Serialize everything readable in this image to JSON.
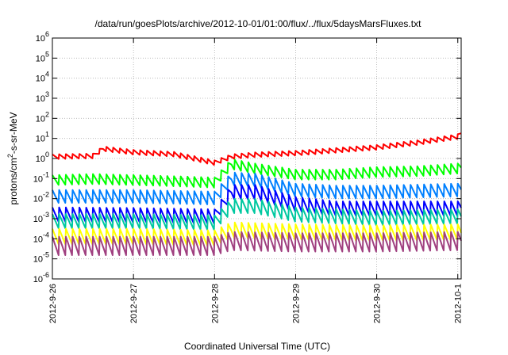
{
  "chart_data": {
    "type": "line",
    "title": "/data/run/goesPlots/archive/2012-10-01/01:00/flux/../flux/5daysMarsFluxes.txt",
    "xlabel": "Coordinated Universal Time (UTC)",
    "ylabel": "protons/cm2-s-sr-MeV",
    "ylabel_parts": {
      "base": "protons/cm",
      "sup": "2",
      "rest": "-s-sr-MeV"
    },
    "y_scale": "log",
    "ylim": [
      1e-06,
      1000000.0
    ],
    "y_ticks": [
      {
        "value": 1e-06,
        "base": "10",
        "exp": "-6"
      },
      {
        "value": 1e-05,
        "base": "10",
        "exp": "-5"
      },
      {
        "value": 0.0001,
        "base": "10",
        "exp": "-4"
      },
      {
        "value": 0.001,
        "base": "10",
        "exp": "-3"
      },
      {
        "value": 0.01,
        "base": "10",
        "exp": "-2"
      },
      {
        "value": 0.1,
        "base": "10",
        "exp": "-1"
      },
      {
        "value": 1.0,
        "base": "10",
        "exp": "0"
      },
      {
        "value": 10.0,
        "base": "10",
        "exp": "1"
      },
      {
        "value": 100.0,
        "base": "10",
        "exp": "2"
      },
      {
        "value": 1000.0,
        "base": "10",
        "exp": "3"
      },
      {
        "value": 10000.0,
        "base": "10",
        "exp": "4"
      },
      {
        "value": 100000.0,
        "base": "10",
        "exp": "5"
      },
      {
        "value": 1000000.0,
        "base": "10",
        "exp": "6"
      }
    ],
    "xlim": [
      "2012-09-26T00:00",
      "2012-10-01T01:00"
    ],
    "x_ticks": [
      {
        "label": "2012-9-26",
        "value": "2012-09-26T00:00"
      },
      {
        "label": "2012-9-27",
        "value": "2012-09-27T00:00"
      },
      {
        "label": "2012-9-28",
        "value": "2012-09-28T00:00"
      },
      {
        "label": "2012-9-29",
        "value": "2012-09-29T00:00"
      },
      {
        "label": "2012-9-30",
        "value": "2012-09-30T00:00"
      },
      {
        "label": "2012-10-1",
        "value": "2012-10-01T00:00"
      }
    ],
    "grid": true,
    "sawtooth_period_hours": 2,
    "series": [
      {
        "color": "#ff0000",
        "sawtooth_peak_to_trough": 1.8,
        "trend": [
          {
            "x": "2012-09-26T00:00",
            "y": 1.2
          },
          {
            "x": "2012-09-26T12:00",
            "y": 1.3
          },
          {
            "x": "2012-09-26T15:00",
            "y": 3.0
          },
          {
            "x": "2012-09-27T00:00",
            "y": 2.0
          },
          {
            "x": "2012-09-27T12:00",
            "y": 1.6
          },
          {
            "x": "2012-09-28T00:00",
            "y": 0.6
          },
          {
            "x": "2012-09-28T05:00",
            "y": 1.2
          },
          {
            "x": "2012-09-28T12:00",
            "y": 1.5
          },
          {
            "x": "2012-09-29T00:00",
            "y": 1.8
          },
          {
            "x": "2012-09-29T12:00",
            "y": 2.5
          },
          {
            "x": "2012-09-30T00:00",
            "y": 3.5
          },
          {
            "x": "2012-09-30T12:00",
            "y": 6.0
          },
          {
            "x": "2012-10-01T00:00",
            "y": 12
          },
          {
            "x": "2012-10-01T01:00",
            "y": 18
          }
        ]
      },
      {
        "color": "#00ff00",
        "sawtooth_peak_to_trough": 3.5,
        "trend": [
          {
            "x": "2012-09-26T00:00",
            "y": 0.08
          },
          {
            "x": "2012-09-26T12:00",
            "y": 0.09
          },
          {
            "x": "2012-09-27T00:00",
            "y": 0.08
          },
          {
            "x": "2012-09-27T12:00",
            "y": 0.07
          },
          {
            "x": "2012-09-28T00:00",
            "y": 0.06
          },
          {
            "x": "2012-09-28T05:00",
            "y": 0.5
          },
          {
            "x": "2012-09-28T12:00",
            "y": 0.3
          },
          {
            "x": "2012-09-29T00:00",
            "y": 0.15
          },
          {
            "x": "2012-09-29T12:00",
            "y": 0.15
          },
          {
            "x": "2012-09-30T00:00",
            "y": 0.2
          },
          {
            "x": "2012-09-30T12:00",
            "y": 0.22
          },
          {
            "x": "2012-10-01T00:00",
            "y": 0.3
          },
          {
            "x": "2012-10-01T01:00",
            "y": 0.35
          }
        ]
      },
      {
        "color": "#0080ff",
        "sawtooth_peak_to_trough": 5,
        "trend": [
          {
            "x": "2012-09-26T00:00",
            "y": 0.012
          },
          {
            "x": "2012-09-27T00:00",
            "y": 0.012
          },
          {
            "x": "2012-09-28T00:00",
            "y": 0.01
          },
          {
            "x": "2012-09-28T05:00",
            "y": 0.09
          },
          {
            "x": "2012-09-28T12:00",
            "y": 0.08
          },
          {
            "x": "2012-09-29T00:00",
            "y": 0.025
          },
          {
            "x": "2012-09-29T12:00",
            "y": 0.02
          },
          {
            "x": "2012-09-30T00:00",
            "y": 0.02
          },
          {
            "x": "2012-10-01T00:00",
            "y": 0.025
          },
          {
            "x": "2012-10-01T01:00",
            "y": 0.028
          }
        ]
      },
      {
        "color": "#0000ff",
        "sawtooth_peak_to_trough": 6,
        "trend": [
          {
            "x": "2012-09-26T00:00",
            "y": 0.0015
          },
          {
            "x": "2012-09-27T00:00",
            "y": 0.0014
          },
          {
            "x": "2012-09-28T00:00",
            "y": 0.0012
          },
          {
            "x": "2012-09-28T05:00",
            "y": 0.02
          },
          {
            "x": "2012-09-28T12:00",
            "y": 0.02
          },
          {
            "x": "2012-09-29T00:00",
            "y": 0.005
          },
          {
            "x": "2012-09-29T12:00",
            "y": 0.003
          },
          {
            "x": "2012-09-30T00:00",
            "y": 0.003
          },
          {
            "x": "2012-10-01T00:00",
            "y": 0.003
          },
          {
            "x": "2012-10-01T01:00",
            "y": 0.0035
          }
        ]
      },
      {
        "color": "#00c8a0",
        "sawtooth_peak_to_trough": 6,
        "trend": [
          {
            "x": "2012-09-26T00:00",
            "y": 0.0007
          },
          {
            "x": "2012-09-27T00:00",
            "y": 0.0007
          },
          {
            "x": "2012-09-28T00:00",
            "y": 0.0006
          },
          {
            "x": "2012-09-28T05:00",
            "y": 0.004
          },
          {
            "x": "2012-09-28T12:00",
            "y": 0.004
          },
          {
            "x": "2012-09-29T00:00",
            "y": 0.0015
          },
          {
            "x": "2012-09-30T00:00",
            "y": 0.001
          },
          {
            "x": "2012-10-01T00:00",
            "y": 0.0012
          },
          {
            "x": "2012-10-01T01:00",
            "y": 0.0013
          }
        ]
      },
      {
        "color": "#ffff00",
        "sawtooth_peak_to_trough": 7,
        "trend": [
          {
            "x": "2012-09-26T00:00",
            "y": 0.00012
          },
          {
            "x": "2012-09-27T00:00",
            "y": 0.00012
          },
          {
            "x": "2012-09-28T00:00",
            "y": 0.0001
          },
          {
            "x": "2012-09-28T05:00",
            "y": 0.00025
          },
          {
            "x": "2012-09-29T00:00",
            "y": 0.0002
          },
          {
            "x": "2012-09-30T00:00",
            "y": 0.00018
          },
          {
            "x": "2012-10-01T00:00",
            "y": 0.0002
          },
          {
            "x": "2012-10-01T01:00",
            "y": 0.0002
          }
        ]
      },
      {
        "color": "#a04080",
        "sawtooth_peak_to_trough": 10,
        "trend": [
          {
            "x": "2012-09-26T00:00",
            "y": 4e-05
          },
          {
            "x": "2012-09-27T00:00",
            "y": 4e-05
          },
          {
            "x": "2012-09-28T00:00",
            "y": 4e-05
          },
          {
            "x": "2012-09-28T05:00",
            "y": 7e-05
          },
          {
            "x": "2012-09-29T00:00",
            "y": 6e-05
          },
          {
            "x": "2012-09-30T00:00",
            "y": 6e-05
          },
          {
            "x": "2012-10-01T00:00",
            "y": 7e-05
          },
          {
            "x": "2012-10-01T01:00",
            "y": 8e-05
          }
        ]
      }
    ]
  }
}
